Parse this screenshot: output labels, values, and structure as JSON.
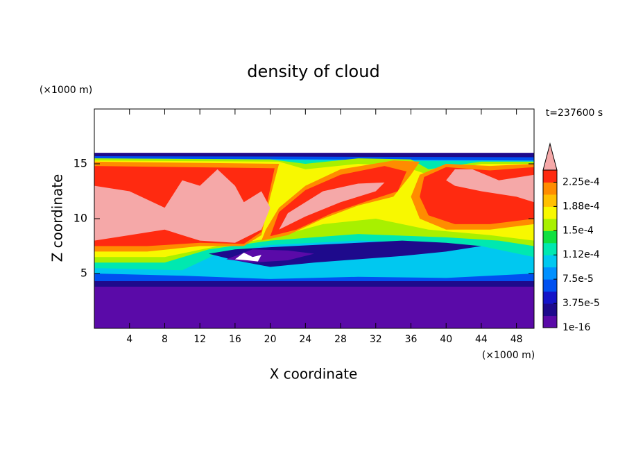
{
  "chart_data": {
    "type": "contour",
    "title": "density of cloud",
    "x_label": "X coordinate",
    "y_label": "Z coordinate",
    "x_unit": "(×1000 m)",
    "y_unit": "(×1000 m)",
    "time_label": "t=237600 s",
    "xlim": [
      0,
      50
    ],
    "xticks": [
      4,
      8,
      12,
      16,
      20,
      24,
      28,
      32,
      36,
      40,
      44,
      48
    ],
    "ylim": [
      0,
      20
    ],
    "yticks": [
      5,
      10,
      15
    ],
    "colorbar": {
      "clim": [
        1e-16,
        0.00024375
      ],
      "ticks": [
        {
          "value": 1e-16,
          "label": "1e-16"
        },
        {
          "value": 3.75e-05,
          "label": "3.75e-5"
        },
        {
          "value": 7.5e-05,
          "label": "7.5e-5"
        },
        {
          "value": 0.0001125,
          "label": "1.12e-4"
        },
        {
          "value": 0.00015,
          "label": "1.5e-4"
        },
        {
          "value": 0.0001875,
          "label": "1.88e-4"
        },
        {
          "value": 0.000225,
          "label": "2.25e-4"
        }
      ],
      "colors": [
        "#5a0aa8",
        "#1e0a8c",
        "#1414c8",
        "#0050f0",
        "#0090ff",
        "#00c8f0",
        "#00e8b0",
        "#10e040",
        "#a8f000",
        "#f8f800",
        "#ffc000",
        "#ff8c00",
        "#ff2a10",
        "#f5a8a8"
      ]
    }
  }
}
